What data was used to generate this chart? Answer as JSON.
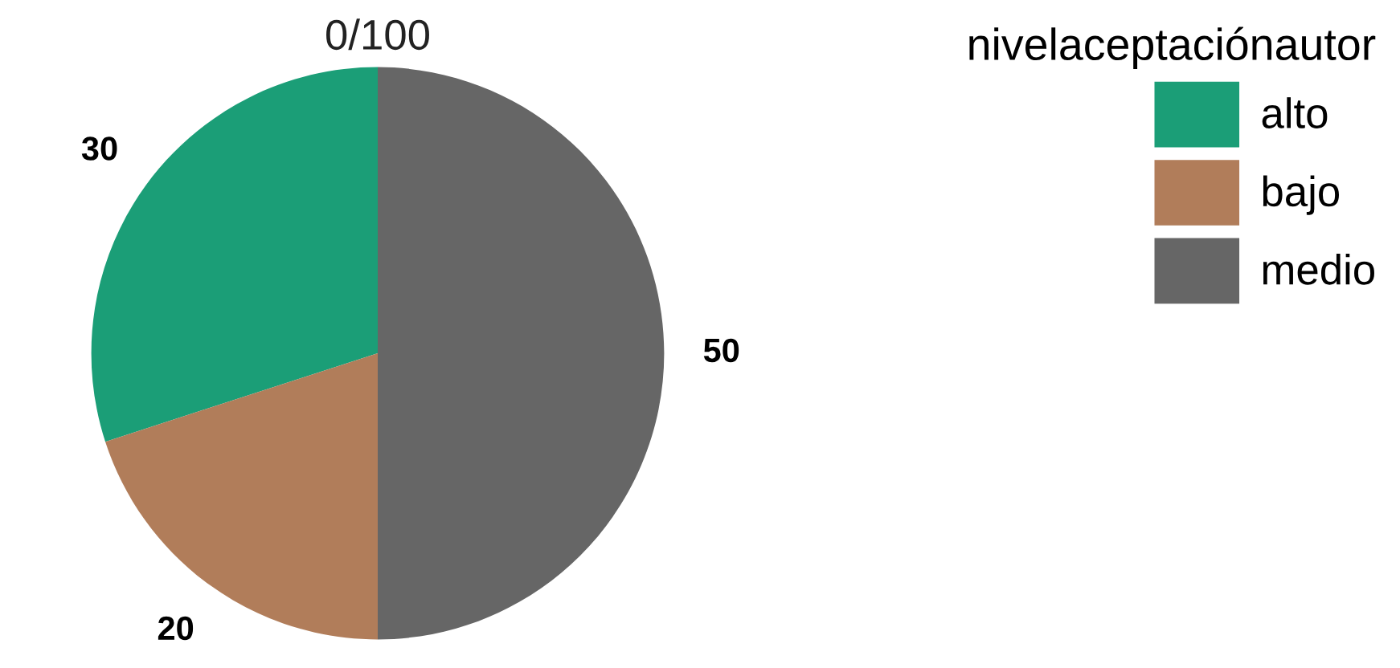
{
  "chart_data": {
    "type": "pie",
    "categories": [
      "alto",
      "bajo",
      "medio"
    ],
    "values": [
      30,
      20,
      50
    ],
    "colors": [
      "#1b9e77",
      "#b17d5a",
      "#666666"
    ],
    "legend_title": "nivelaceptaciónautor",
    "legend": "top right",
    "data_labels": true,
    "annotations": [
      "0/100"
    ]
  }
}
